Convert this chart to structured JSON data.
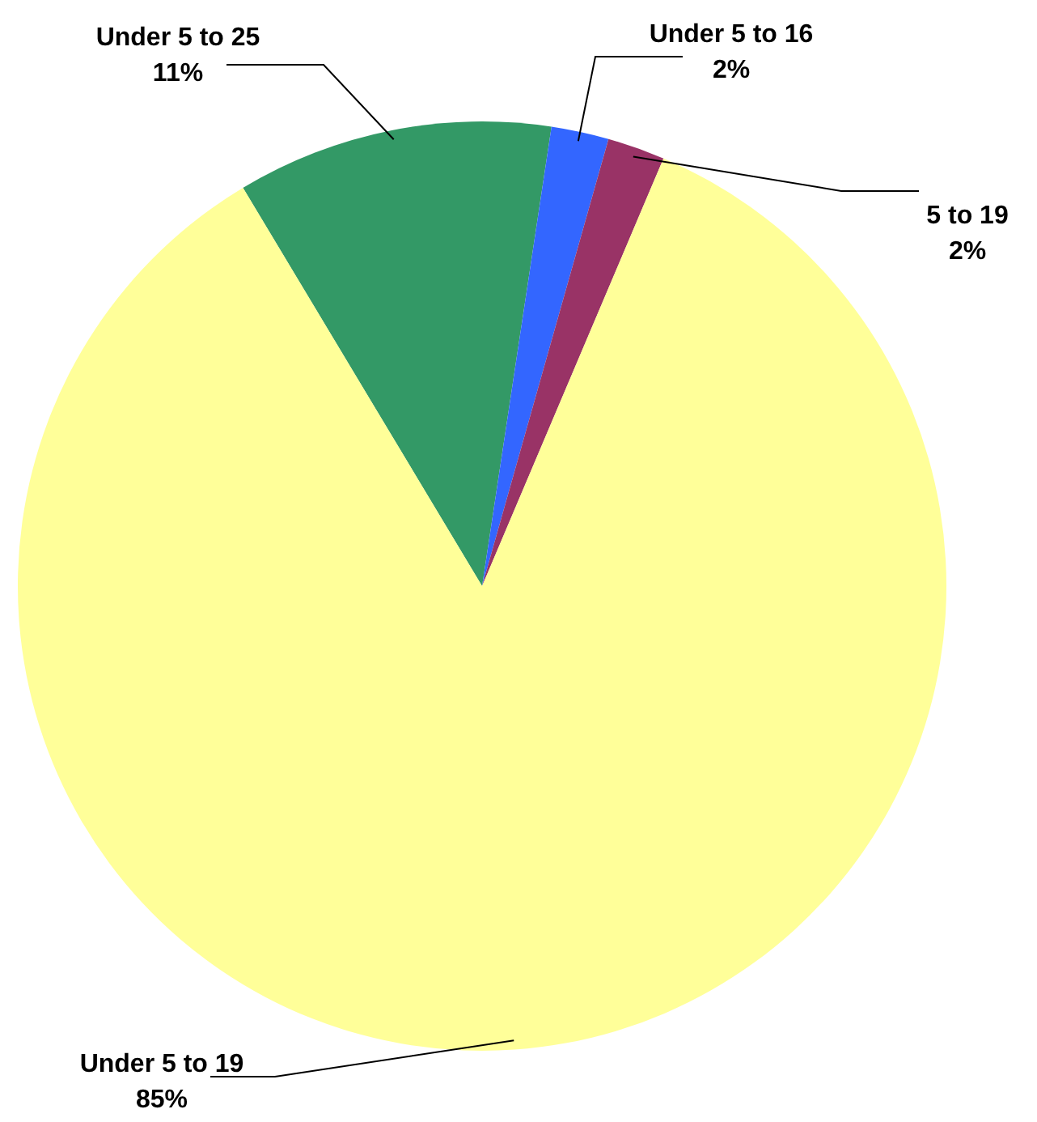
{
  "chart_data": {
    "type": "pie",
    "categories": [
      "Under 5 to 25",
      "Under 5 to 16",
      "5 to 19",
      "Under 5 to 19"
    ],
    "values": [
      11,
      2,
      2,
      85
    ],
    "colors": [
      "#339966",
      "#3366ff",
      "#993366",
      "#ffff99"
    ],
    "value_labels": [
      "11%",
      "2%",
      "2%",
      "85%"
    ]
  }
}
